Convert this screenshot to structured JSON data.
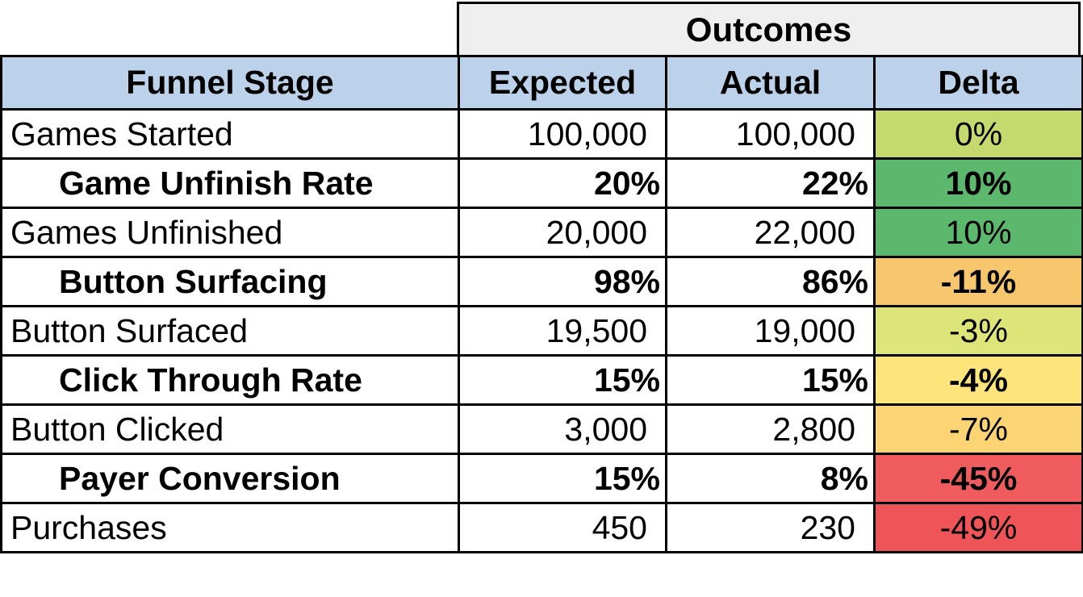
{
  "header": {
    "group_label": "Outcomes",
    "columns": [
      "Funnel Stage",
      "Expected",
      "Actual",
      "Delta"
    ]
  },
  "rows": [
    {
      "stage": "Games Started",
      "expected": "100,000",
      "actual": "100,000",
      "delta": "0%",
      "bold": false,
      "delta_color": "#c6d96f"
    },
    {
      "stage": "Game Unfinish Rate",
      "expected": "20%",
      "actual": "22%",
      "delta": "10%",
      "bold": true,
      "delta_color": "#5bb86c"
    },
    {
      "stage": "Games Unfinished",
      "expected": "20,000",
      "actual": "22,000",
      "delta": "10%",
      "bold": false,
      "delta_color": "#5bb86c"
    },
    {
      "stage": "Button Surfacing",
      "expected": "98%",
      "actual": "86%",
      "delta": "-11%",
      "bold": true,
      "delta_color": "#f7c66d"
    },
    {
      "stage": "Button Surfaced",
      "expected": "19,500",
      "actual": "19,000",
      "delta": "-3%",
      "bold": false,
      "delta_color": "#dde478"
    },
    {
      "stage": "Click Through Rate",
      "expected": "15%",
      "actual": "15%",
      "delta": "-4%",
      "bold": true,
      "delta_color": "#fde47b"
    },
    {
      "stage": "Button Clicked",
      "expected": "3,000",
      "actual": "2,800",
      "delta": "-7%",
      "bold": false,
      "delta_color": "#fcd474"
    },
    {
      "stage": "Payer Conversion",
      "expected": "15%",
      "actual": "8%",
      "delta": "-45%",
      "bold": true,
      "delta_color": "#f05c5e"
    },
    {
      "stage": "Purchases",
      "expected": "450",
      "actual": "230",
      "delta": "-49%",
      "bold": false,
      "delta_color": "#ef5458"
    }
  ]
}
